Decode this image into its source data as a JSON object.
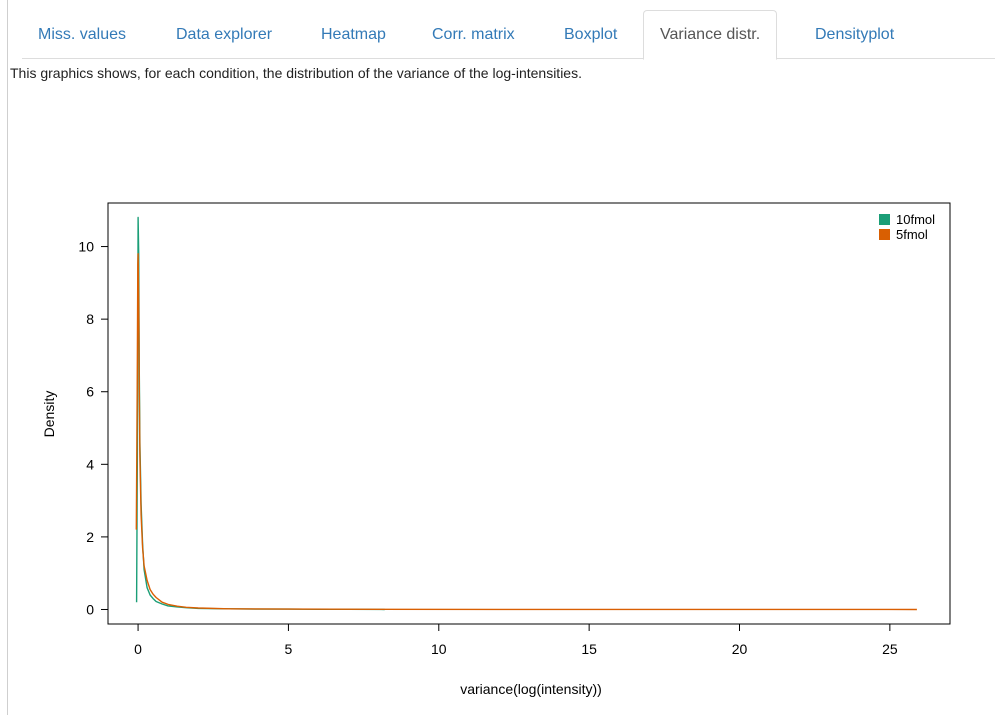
{
  "tabs": [
    {
      "label": "Miss. values",
      "active": false
    },
    {
      "label": "Data explorer",
      "active": false
    },
    {
      "label": "Heatmap",
      "active": false
    },
    {
      "label": "Corr. matrix",
      "active": false
    },
    {
      "label": "Boxplot",
      "active": false
    },
    {
      "label": "Variance distr.",
      "active": true
    },
    {
      "label": "Densityplot",
      "active": false
    }
  ],
  "description": "This graphics shows, for each condition, the distribution of the variance of the log-intensities.",
  "chart_data": {
    "type": "line",
    "title": "",
    "xlabel": "variance(log(intensity))",
    "ylabel": "Density",
    "xlim": [
      -1,
      27
    ],
    "ylim": [
      -0.4,
      11.2
    ],
    "xticks": [
      0,
      5,
      10,
      15,
      20,
      25
    ],
    "yticks": [
      0,
      2,
      4,
      6,
      8,
      10
    ],
    "legend_position": "top-right",
    "grid": false,
    "series": [
      {
        "name": "10fmol",
        "color": "#1b9e77",
        "x": [
          -0.05,
          -0.02,
          0.0,
          0.02,
          0.04,
          0.06,
          0.1,
          0.15,
          0.2,
          0.3,
          0.4,
          0.5,
          0.6,
          0.8,
          1.0,
          1.3,
          1.6,
          2.0,
          3.0,
          4.0,
          5.0,
          6.0,
          7.0,
          8.2
        ],
        "y": [
          0.2,
          5.0,
          10.8,
          9.8,
          6.5,
          4.6,
          2.9,
          1.8,
          1.1,
          0.6,
          0.4,
          0.3,
          0.22,
          0.15,
          0.1,
          0.07,
          0.05,
          0.03,
          0.02,
          0.01,
          0.01,
          0.005,
          0.005,
          0.0
        ]
      },
      {
        "name": "5fmol",
        "color": "#d95f02",
        "x": [
          -0.06,
          -0.03,
          -0.01,
          0.0,
          0.02,
          0.04,
          0.06,
          0.1,
          0.15,
          0.2,
          0.3,
          0.4,
          0.5,
          0.6,
          0.8,
          1.0,
          1.3,
          1.6,
          2.0,
          3.0,
          5.0,
          8.0,
          12.0,
          16.0,
          20.0,
          24.0,
          25.9
        ],
        "y": [
          2.2,
          6.0,
          9.5,
          9.8,
          8.5,
          6.0,
          4.2,
          2.6,
          1.7,
          1.2,
          0.8,
          0.55,
          0.42,
          0.33,
          0.2,
          0.14,
          0.09,
          0.06,
          0.04,
          0.02,
          0.01,
          0.005,
          0.003,
          0.002,
          0.001,
          0.001,
          0.0
        ]
      }
    ]
  }
}
